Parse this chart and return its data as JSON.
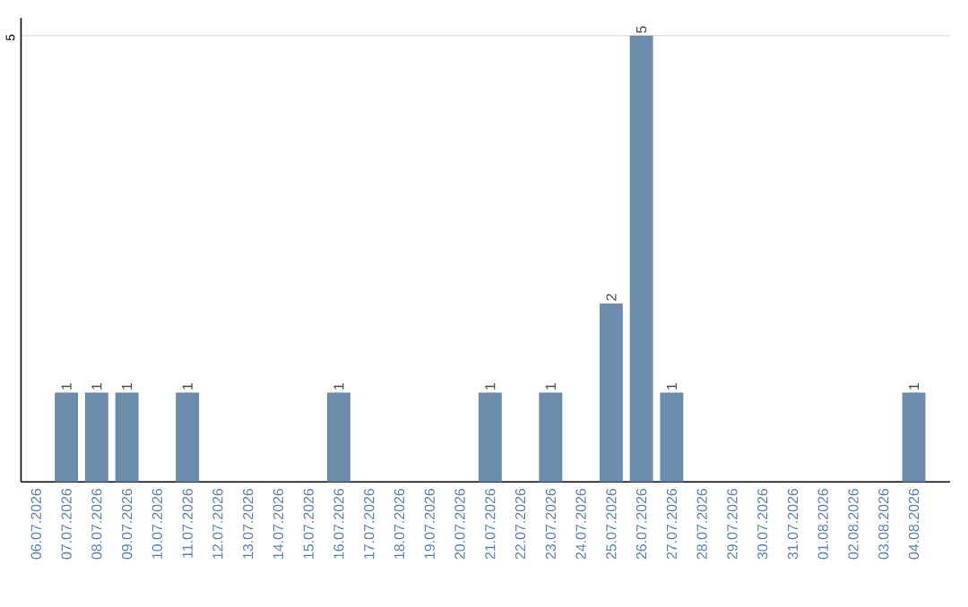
{
  "chart_data": {
    "type": "bar",
    "categories": [
      "06.07.2026",
      "07.07.2026",
      "08.07.2026",
      "09.07.2026",
      "10.07.2026",
      "11.07.2026",
      "12.07.2026",
      "13.07.2026",
      "14.07.2026",
      "15.07.2026",
      "16.07.2026",
      "17.07.2026",
      "18.07.2026",
      "19.07.2026",
      "20.07.2026",
      "21.07.2026",
      "22.07.2026",
      "23.07.2026",
      "24.07.2026",
      "25.07.2026",
      "26.07.2026",
      "27.07.2026",
      "28.07.2026",
      "29.07.2026",
      "30.07.2026",
      "31.07.2026",
      "01.08.2026",
      "02.08.2026",
      "03.08.2026",
      "04.08.2026"
    ],
    "values": [
      null,
      1,
      1,
      1,
      null,
      1,
      null,
      null,
      null,
      null,
      1,
      null,
      null,
      null,
      null,
      1,
      null,
      1,
      null,
      2,
      5,
      1,
      null,
      null,
      null,
      null,
      null,
      null,
      null,
      1
    ],
    "color": "#6b8cab",
    "ylim": [
      0,
      5.2
    ],
    "yticks": [
      5
    ],
    "grid": "y",
    "data_labels": true
  }
}
